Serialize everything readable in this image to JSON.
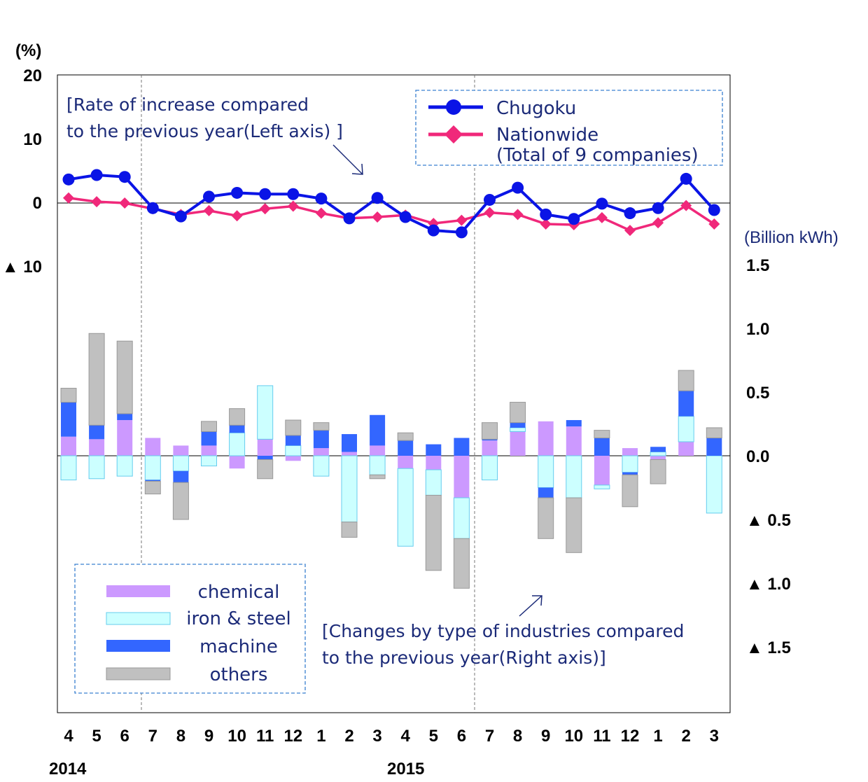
{
  "chart_data": {
    "type": "bar+line",
    "categories": [
      "4",
      "5",
      "6",
      "7",
      "8",
      "9",
      "10",
      "11",
      "12",
      "1",
      "2",
      "3",
      "4",
      "5",
      "6",
      "7",
      "8",
      "9",
      "10",
      "11",
      "12",
      "1",
      "2",
      "3"
    ],
    "year_labels": [
      {
        "label": "2014",
        "category_index": 0
      },
      {
        "label": "2015",
        "category_index": 12
      }
    ],
    "left_axis": {
      "unit": "(%)",
      "ticks": [
        {
          "value": 20,
          "label": "20"
        },
        {
          "value": 10,
          "label": "10"
        },
        {
          "value": 0,
          "label": "0"
        },
        {
          "value": -10,
          "label": "▲ 10"
        }
      ],
      "range": [
        -10,
        20
      ]
    },
    "right_axis": {
      "unit": "(Billion kWh)",
      "ticks": [
        {
          "value": 1.5,
          "label": "1.5"
        },
        {
          "value": 1.0,
          "label": "1.0"
        },
        {
          "value": 0.5,
          "label": "0.5"
        },
        {
          "value": 0.0,
          "label": "0.0"
        },
        {
          "value": -0.5,
          "label": "▲ 0.5"
        },
        {
          "value": -1.0,
          "label": "▲ 1.0"
        },
        {
          "value": -1.5,
          "label": "▲ 1.5"
        }
      ],
      "range": [
        -2.0,
        1.5
      ]
    },
    "line_series": [
      {
        "name": "Chugoku",
        "color": "#0a14e6",
        "marker": "circle",
        "values": [
          3.7,
          4.4,
          4.1,
          -0.8,
          -2.1,
          1.0,
          1.6,
          1.4,
          1.4,
          0.7,
          -2.4,
          0.8,
          -2.2,
          -4.3,
          -4.6,
          0.5,
          2.4,
          -1.8,
          -2.5,
          -0.1,
          -1.6,
          -0.8,
          3.8,
          -1.1
        ]
      },
      {
        "name": "Nationwide\n(Total of 9 companies)",
        "legend_line1": "Nationwide",
        "legend_line2": "(Total of 9 companies)",
        "color": "#f0287a",
        "marker": "diamond",
        "values": [
          0.8,
          0.2,
          0.0,
          -0.9,
          -1.8,
          -1.2,
          -2.0,
          -0.9,
          -0.5,
          -1.6,
          -2.4,
          -2.2,
          -1.9,
          -3.2,
          -2.7,
          -1.5,
          -1.8,
          -3.3,
          -3.4,
          -2.3,
          -4.3,
          -3.1,
          -0.4,
          -3.3
        ]
      }
    ],
    "bar_series": [
      {
        "name": "chemical",
        "color": "#cc99ff",
        "values": [
          0.15,
          0.13,
          0.28,
          0.14,
          0.08,
          0.08,
          -0.1,
          0.13,
          -0.04,
          0.06,
          0.03,
          0.08,
          -0.1,
          -0.11,
          -0.33,
          0.12,
          0.19,
          0.27,
          0.23,
          -0.23,
          0.06,
          -0.03,
          0.11,
          0.0
        ]
      },
      {
        "name": "iron & steel",
        "color": "#ccffff",
        "values": [
          -0.19,
          -0.18,
          -0.16,
          -0.19,
          -0.12,
          -0.08,
          0.18,
          0.42,
          0.08,
          -0.16,
          -0.52,
          -0.15,
          -0.61,
          -0.2,
          -0.32,
          -0.19,
          0.03,
          -0.25,
          -0.33,
          -0.03,
          -0.13,
          0.03,
          0.2,
          -0.45
        ]
      },
      {
        "name": "machine",
        "color": "#3366ff",
        "values": [
          0.27,
          0.11,
          0.05,
          -0.01,
          -0.09,
          0.11,
          0.06,
          -0.03,
          0.08,
          0.14,
          0.14,
          0.24,
          0.12,
          0.09,
          0.14,
          0.01,
          0.04,
          -0.08,
          0.05,
          0.14,
          -0.02,
          0.04,
          0.2,
          0.14
        ]
      },
      {
        "name": "others",
        "color": "#c0c0c0",
        "values": [
          0.11,
          0.72,
          0.57,
          -0.1,
          -0.29,
          0.08,
          0.13,
          -0.15,
          0.12,
          0.06,
          -0.12,
          -0.03,
          0.06,
          -0.59,
          -0.39,
          0.13,
          0.16,
          -0.32,
          -0.43,
          0.06,
          -0.25,
          -0.19,
          0.16,
          0.08
        ]
      }
    ],
    "annotations": {
      "left_note_line1": "[Rate of increase compared",
      "left_note_line2": "to the previous year(Left axis) ]",
      "right_note_line1": "[Changes by type of industries compared",
      "right_note_line2": "to the previous year(Right axis)]"
    },
    "grid": false,
    "legend_placement_lines": "top-right",
    "legend_placement_bars": "bottom-left"
  }
}
